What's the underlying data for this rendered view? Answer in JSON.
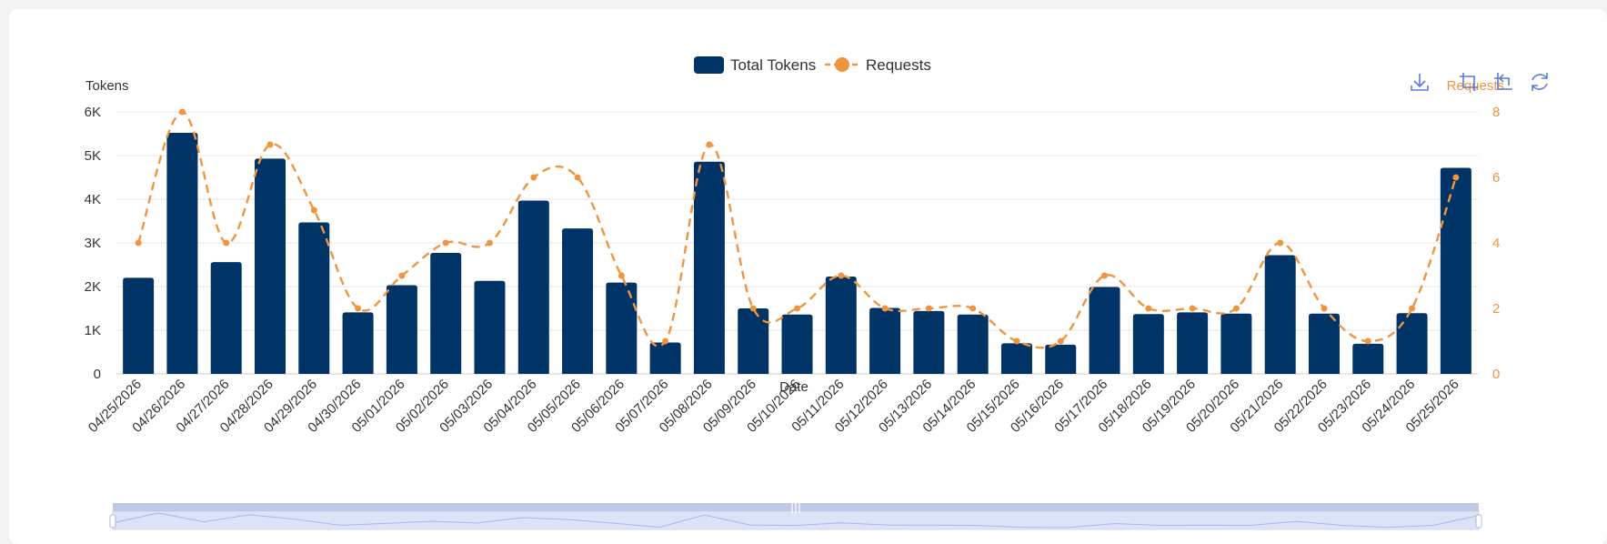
{
  "colors": {
    "bar": "#003366",
    "line": "#f0953f",
    "axis_text": "#333333",
    "grid": "#e6e6e6",
    "zoom_fill": "#dbe3f7",
    "zoom_handle": "#bfc9e6",
    "toolbox": "#5b7bd5"
  },
  "toolbox": {
    "icons": [
      "download-icon",
      "zoom-select-icon",
      "zoom-back-icon",
      "restore-icon"
    ]
  },
  "chart_data": {
    "type": "bar",
    "legend": {
      "placement": "top-center",
      "entries": [
        "Total Tokens",
        "Requests"
      ]
    },
    "xlabel": "Date",
    "categories": [
      "04/25/2026",
      "04/26/2026",
      "04/27/2026",
      "04/28/2026",
      "04/29/2026",
      "04/30/2026",
      "05/01/2026",
      "05/02/2026",
      "05/03/2026",
      "05/04/2026",
      "05/05/2026",
      "05/06/2026",
      "05/07/2026",
      "05/08/2026",
      "05/09/2026",
      "05/10/2026",
      "05/11/2026",
      "05/12/2026",
      "05/13/2026",
      "05/14/2026",
      "05/15/2026",
      "05/16/2026",
      "05/17/2026",
      "05/18/2026",
      "05/19/2026",
      "05/20/2026",
      "05/21/2026",
      "05/22/2026",
      "05/23/2026",
      "05/24/2026",
      "05/25/2026"
    ],
    "y_left": {
      "label": "Tokens",
      "range": [
        0,
        6000
      ],
      "ticks": [
        0,
        1000,
        2000,
        3000,
        4000,
        5000,
        6000
      ],
      "tick_labels": [
        "0",
        "1K",
        "2K",
        "3K",
        "4K",
        "5K",
        "6K"
      ]
    },
    "y_right": {
      "label": "Requests",
      "range": [
        0,
        8
      ],
      "ticks": [
        0,
        2,
        4,
        6,
        8
      ],
      "tick_labels": [
        "0",
        "2",
        "4",
        "6",
        "8"
      ]
    },
    "grid": true,
    "series": [
      {
        "name": "Total Tokens",
        "type": "bar",
        "axis": "left",
        "values": [
          2200,
          5520,
          2560,
          4930,
          3470,
          1410,
          2030,
          2770,
          2130,
          3970,
          3330,
          2090,
          720,
          4860,
          1500,
          1360,
          2230,
          1510,
          1440,
          1360,
          700,
          670,
          1990,
          1370,
          1410,
          1380,
          2720,
          1380,
          690,
          1390,
          4720
        ]
      },
      {
        "name": "Requests",
        "type": "line",
        "style": "dashed-smooth",
        "axis": "right",
        "values": [
          4,
          8,
          4,
          7,
          5,
          2,
          3,
          4,
          4,
          6,
          6,
          3,
          1,
          7,
          2,
          2,
          3,
          2,
          2,
          2,
          1,
          1,
          3,
          2,
          2,
          2,
          4,
          2,
          1,
          2,
          6
        ]
      }
    ]
  }
}
